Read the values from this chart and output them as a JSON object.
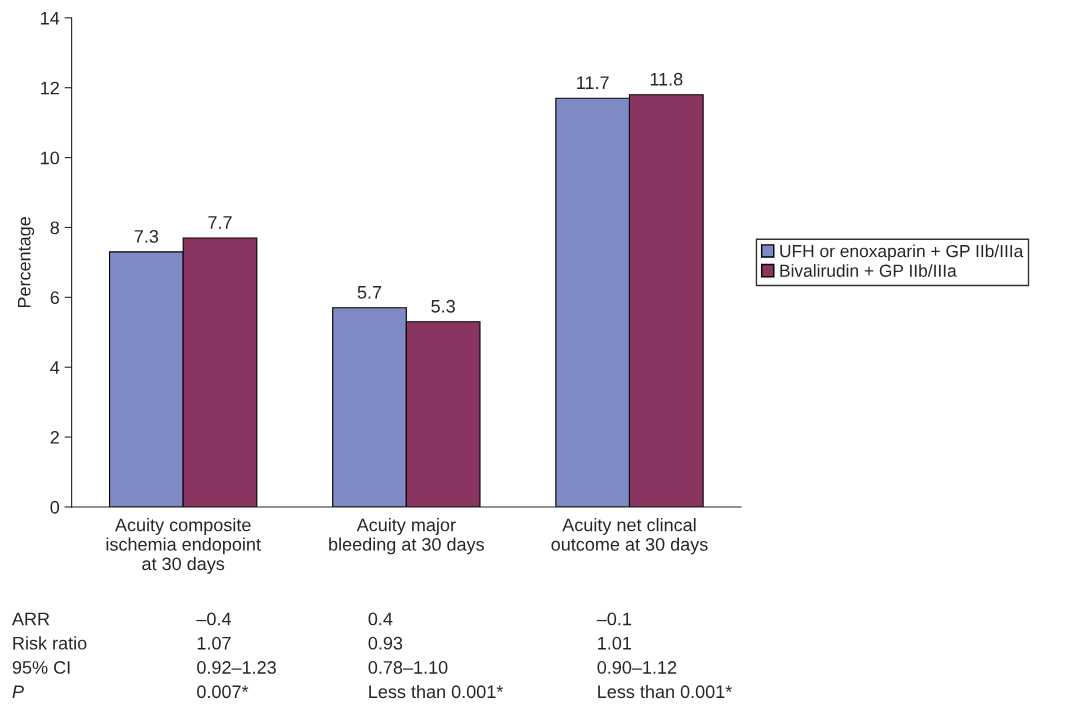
{
  "chart_data": {
    "type": "bar",
    "ylabel": "Percentage",
    "categories": [
      "Acuity composite\nischemia endopoint\nat 30 days",
      "Acuity major\nbleeding at 30 days",
      "Acuity net clincal\noutcome at 30 days"
    ],
    "series": [
      {
        "name": "UFH or enoxaparin + GP IIb/IIIa",
        "color": "#7f89c3",
        "values": [
          7.3,
          5.7,
          11.7
        ]
      },
      {
        "name": "Bivalirudin + GP IIb/IIIa",
        "color": "#8a3561",
        "values": [
          7.7,
          5.3,
          11.8
        ]
      }
    ],
    "ylim": [
      0,
      14
    ],
    "yticks": [
      0,
      2,
      4,
      6,
      8,
      10,
      12,
      14
    ],
    "grid": false,
    "legend": "right",
    "data_labels": true,
    "annotations": [
      "ARR",
      "–0.4",
      "0.4",
      "–0.1",
      "Risk ratio",
      "1.07",
      "0.93",
      "1.01",
      "95% CI",
      "0.92–1.23",
      "0.78–1.10",
      "0.90–1.12",
      "P",
      "0.007*",
      "Less than 0.001*",
      "Less than 0.001*"
    ]
  }
}
